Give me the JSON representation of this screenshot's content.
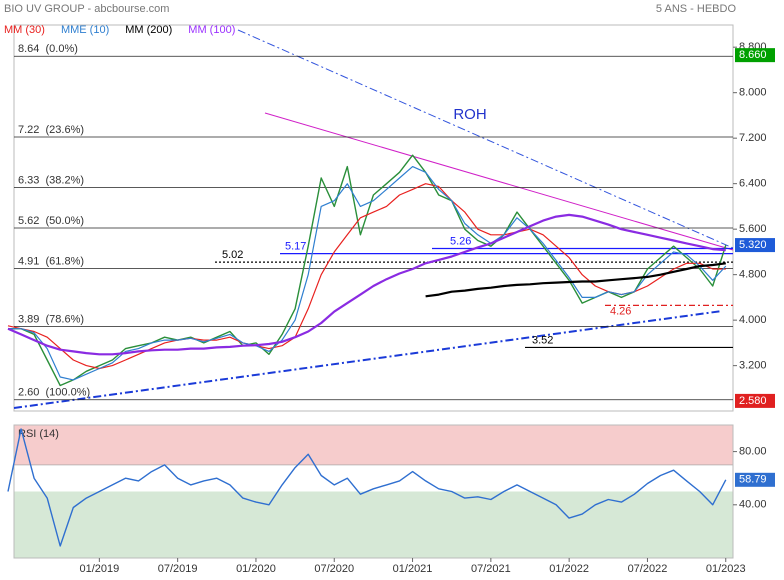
{
  "chart_data": [
    {
      "type": "line",
      "title": "BIO UV GROUP - abcbourse.com",
      "subtitle": "5 ANS - HEBDO",
      "annotation": "ROH",
      "ylim": [
        2.42,
        9.19
      ],
      "yticks": [
        {
          "value": 8.8,
          "label": "8.800"
        },
        {
          "value": 8.0,
          "label": "8.000"
        },
        {
          "value": 7.2,
          "label": "7.200"
        },
        {
          "value": 6.4,
          "label": "6.400"
        },
        {
          "value": 5.6,
          "label": "5.600"
        },
        {
          "value": 4.8,
          "label": "4.800"
        },
        {
          "value": 4.0,
          "label": "4.000"
        },
        {
          "value": 3.2,
          "label": "3.200"
        }
      ],
      "series": [
        {
          "color": "#2a8f3a",
          "values": [
            3.85,
            3.85,
            3.75,
            3.3,
            2.85,
            2.95,
            3.1,
            3.2,
            3.3,
            3.5,
            3.55,
            3.6,
            3.7,
            3.65,
            3.7,
            3.6,
            3.7,
            3.8,
            3.55,
            3.6,
            3.4,
            3.75,
            4.2,
            5.3,
            6.5,
            6.0,
            6.7,
            5.5,
            6.2,
            6.4,
            6.6,
            6.9,
            6.6,
            6.2,
            6.1,
            5.6,
            5.4,
            5.3,
            5.5,
            5.9,
            5.6,
            5.3,
            5.0,
            4.7,
            4.3,
            4.4,
            4.5,
            4.4,
            4.5,
            4.9,
            5.1,
            5.3,
            5.1,
            4.9,
            4.6,
            5.32
          ]
        },
        {
          "name": "MM (30)",
          "color": "#e8211f",
          "values": [
            3.9,
            3.85,
            3.8,
            3.7,
            3.5,
            3.3,
            3.2,
            3.15,
            3.2,
            3.3,
            3.4,
            3.5,
            3.6,
            3.65,
            3.68,
            3.65,
            3.65,
            3.7,
            3.6,
            3.55,
            3.5,
            3.55,
            3.7,
            4.2,
            4.8,
            5.2,
            5.5,
            5.8,
            5.9,
            6.0,
            6.2,
            6.3,
            6.4,
            6.35,
            6.1,
            5.9,
            5.6,
            5.5,
            5.5,
            5.55,
            5.6,
            5.5,
            5.3,
            5.1,
            4.8,
            4.6,
            4.5,
            4.45,
            4.5,
            4.6,
            4.75,
            4.9,
            5.0,
            5.0,
            4.9,
            4.9
          ]
        },
        {
          "name": "MME (10)",
          "color": "#2f7fd0",
          "values": [
            3.85,
            3.85,
            3.78,
            3.5,
            3.0,
            2.95,
            3.05,
            3.15,
            3.25,
            3.45,
            3.5,
            3.6,
            3.65,
            3.65,
            3.68,
            3.62,
            3.68,
            3.75,
            3.6,
            3.55,
            3.45,
            3.65,
            4.0,
            4.8,
            6.0,
            6.1,
            6.4,
            6.0,
            6.1,
            6.3,
            6.5,
            6.7,
            6.6,
            6.3,
            6.1,
            5.7,
            5.5,
            5.35,
            5.5,
            5.8,
            5.6,
            5.35,
            5.05,
            4.75,
            4.4,
            4.4,
            4.5,
            4.45,
            4.5,
            4.8,
            5.0,
            5.2,
            5.15,
            4.95,
            4.7,
            4.95
          ]
        },
        {
          "name": "MM (200)",
          "color": "#000000",
          "values": [
            null,
            null,
            null,
            null,
            null,
            null,
            null,
            null,
            null,
            null,
            null,
            null,
            null,
            null,
            null,
            null,
            null,
            null,
            null,
            null,
            null,
            null,
            null,
            null,
            null,
            null,
            null,
            null,
            null,
            null,
            null,
            null,
            4.42,
            4.45,
            4.5,
            4.52,
            4.55,
            4.57,
            4.6,
            4.62,
            4.63,
            4.65,
            4.66,
            4.67,
            4.68,
            4.68,
            4.7,
            4.72,
            4.74,
            4.76,
            4.8,
            4.85,
            4.9,
            4.95,
            4.97,
            5.0
          ]
        },
        {
          "name": "MM (100)",
          "color": "#8a2be2",
          "values": [
            3.85,
            3.75,
            3.65,
            3.55,
            3.48,
            3.45,
            3.42,
            3.4,
            3.4,
            3.42,
            3.45,
            3.47,
            3.48,
            3.48,
            3.5,
            3.5,
            3.52,
            3.53,
            3.55,
            3.56,
            3.58,
            3.62,
            3.7,
            3.8,
            3.95,
            4.15,
            4.3,
            4.45,
            4.6,
            4.72,
            4.82,
            4.9,
            5.0,
            5.06,
            5.12,
            5.2,
            5.28,
            5.35,
            5.45,
            5.55,
            5.65,
            5.75,
            5.82,
            5.85,
            5.82,
            5.75,
            5.68,
            5.6,
            5.55,
            5.5,
            5.45,
            5.4,
            5.35,
            5.3,
            5.25,
            5.23
          ]
        }
      ],
      "fib_levels": [
        {
          "value": 8.64,
          "label": "8.64  (0.0%)"
        },
        {
          "value": 7.22,
          "label": "7.22  (23.6%)"
        },
        {
          "value": 6.33,
          "label": "6.33  (38.2%)"
        },
        {
          "value": 5.62,
          "label": "5.62  (50.0%)"
        },
        {
          "value": 4.91,
          "label": "4.91  (61.8%)"
        },
        {
          "value": 3.89,
          "label": "3.89  (78.6%)"
        },
        {
          "value": 2.6,
          "label": "2.60  (100.0%)"
        }
      ],
      "levels": [
        {
          "value": 5.17,
          "label": "5.17",
          "color": "#1a1aff"
        },
        {
          "value": 5.26,
          "label": "5.26",
          "color": "#1a1aff"
        },
        {
          "value": 5.02,
          "label": "5.02",
          "color": "#000000"
        },
        {
          "value": 4.26,
          "label": "4.26",
          "color": "#e02020"
        },
        {
          "value": 3.52,
          "label": "3.52",
          "color": "#000000"
        }
      ],
      "price_markers": [
        {
          "value": 8.66,
          "label": "8.660",
          "color": "#00a000"
        },
        {
          "value": 5.32,
          "label": "5.320",
          "color": "#1e5bd8"
        },
        {
          "value": 2.58,
          "label": "2.580",
          "color": "#e02020"
        }
      ]
    },
    {
      "type": "line",
      "title": "RSI (14)",
      "categories": [
        null,
        null,
        null,
        null,
        null,
        null,
        null,
        "01/2019",
        null,
        null,
        null,
        null,
        null,
        "07/2019",
        null,
        null,
        null,
        null,
        null,
        "01/2020",
        null,
        null,
        null,
        null,
        null,
        "07/2020",
        null,
        null,
        null,
        null,
        null,
        "01/2021",
        null,
        null,
        null,
        null,
        null,
        "07/2021",
        null,
        null,
        null,
        null,
        null,
        "01/2022",
        null,
        null,
        null,
        null,
        null,
        "07/2022",
        null,
        null,
        null,
        null,
        null,
        "01/2023"
      ],
      "ylim": [
        0,
        100
      ],
      "yticks": [
        {
          "value": 80,
          "label": "80.00"
        },
        {
          "value": 40,
          "label": "40.00"
        }
      ],
      "bands": [
        {
          "from": 70,
          "to": 100,
          "color": "#f6cccc"
        },
        {
          "from": 0,
          "to": 50,
          "color": "#d6e8d6"
        }
      ],
      "series": [
        {
          "color": "#2f6fd0",
          "values": [
            50,
            97,
            60,
            45,
            9,
            38,
            45,
            50,
            55,
            60,
            58,
            65,
            70,
            60,
            55,
            58,
            60,
            55,
            45,
            42,
            40,
            55,
            68,
            78,
            62,
            55,
            60,
            48,
            52,
            55,
            58,
            65,
            58,
            52,
            50,
            45,
            46,
            44,
            50,
            55,
            50,
            45,
            40,
            30,
            33,
            40,
            44,
            42,
            48,
            56,
            62,
            66,
            58,
            50,
            40,
            58.79
          ]
        }
      ]
    }
  ]
}
